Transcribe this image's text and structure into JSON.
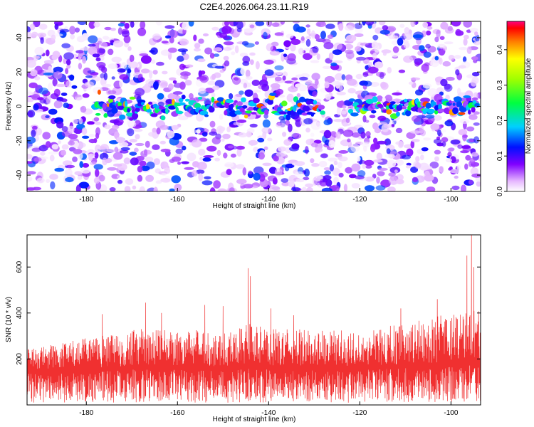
{
  "title": "C2E4.2026.064.23.11.R19",
  "chart_data": [
    {
      "type": "heatmap",
      "panel": "spectrogram",
      "xlabel": "Height of straight line (km)",
      "ylabel": "Frequency (Hz)",
      "xlim": [
        -193,
        -93.5
      ],
      "ylim": [
        -49.5,
        49.5
      ],
      "xticks": [
        -180,
        -160,
        -140,
        -120,
        -100
      ],
      "yticks": [
        -40,
        -20,
        0,
        20,
        40
      ],
      "colorbar": {
        "label": "Normalized spectral amplitude",
        "range": [
          0,
          0.48
        ],
        "ticks": [
          0.0,
          0.1,
          0.2,
          0.3,
          0.4
        ]
      },
      "signal_band": {
        "frequency_hz": 0,
        "half_width_hz": 5,
        "x_ranges": [
          [
            -178,
            -128
          ],
          [
            -122,
            -94
          ]
        ],
        "peak_amplitude": 0.45
      }
    },
    {
      "type": "line",
      "panel": "snr",
      "xlabel": "Height of straight line (km)",
      "ylabel": "SNR (10 * v/v)",
      "xlim": [
        -193,
        -93.5
      ],
      "ylim": [
        0,
        740
      ],
      "xticks": [
        -180,
        -160,
        -140,
        -120,
        -100
      ],
      "yticks": [
        200,
        400,
        600
      ],
      "series": [
        {
          "name": "SNR",
          "color": "#f03030",
          "baseline_mean": 150,
          "envelope": [
            [
              -193,
              250
            ],
            [
              -180,
              290
            ],
            [
              -170,
              330
            ],
            [
              -160,
              330
            ],
            [
              -150,
              320
            ],
            [
              -144,
              360
            ],
            [
              -140,
              330
            ],
            [
              -130,
              330
            ],
            [
              -120,
              320
            ],
            [
              -110,
              360
            ],
            [
              -104,
              380
            ],
            [
              -100,
              400
            ],
            [
              -94,
              420
            ]
          ],
          "peaks": [
            [
              -176.5,
              395
            ],
            [
              -167,
              445
            ],
            [
              -163.5,
              400
            ],
            [
              -154,
              435
            ],
            [
              -150,
              430
            ],
            [
              -144.5,
              595
            ],
            [
              -144,
              560
            ],
            [
              -139.5,
              420
            ],
            [
              -134.5,
              390
            ],
            [
              -129,
              290
            ],
            [
              -111,
              420
            ],
            [
              -103,
              460
            ],
            [
              -96.5,
              650
            ],
            [
              -95.5,
              740
            ],
            [
              -95,
              600
            ]
          ]
        }
      ]
    }
  ]
}
